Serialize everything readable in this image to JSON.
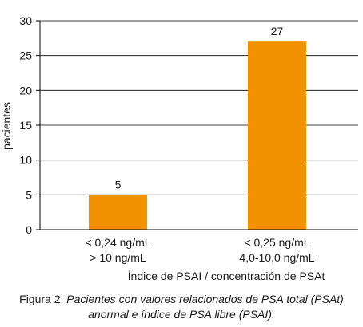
{
  "chart_data": {
    "type": "bar",
    "categories": [
      [
        "< 0,24 ng/mL",
        "> 10 ng/mL"
      ],
      [
        "< 0,25 ng/mL",
        "4,0-10,0 ng/mL"
      ]
    ],
    "values": [
      5,
      27
    ],
    "data_labels": [
      "5",
      "27"
    ],
    "xlabel": "Índice de PSAI / concentración de PSAt",
    "ylabel": "pacientes",
    "ylim": [
      0,
      30
    ],
    "yticks": [
      0,
      5,
      10,
      15,
      20,
      25,
      30
    ],
    "grid": true,
    "legend": "none",
    "bar_color": "#F39200",
    "grid_color": "#000000"
  },
  "caption": {
    "prefix": "Figura 2. ",
    "line1_italic": "Pacientes con valores relacionados de PSA total (PSAt)",
    "line2_italic": "anormal e índice de PSA libre (PSAI)."
  }
}
